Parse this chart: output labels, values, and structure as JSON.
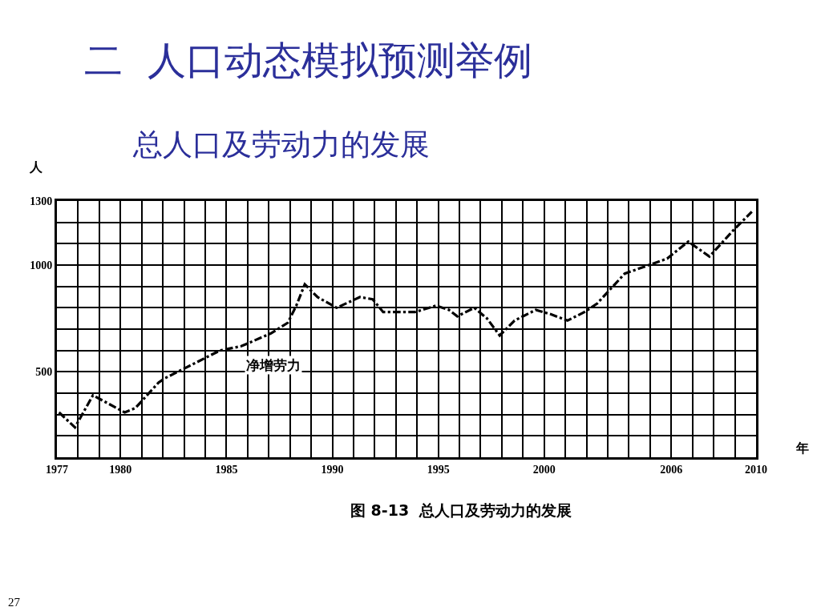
{
  "chart_data": {
    "type": "line",
    "title": "二  人口动态模拟预测举例",
    "subtitle": "总人口及劳动力的发展",
    "xlabel": "年",
    "ylabel": "人",
    "annotations": [
      "图 8-13  总人口及劳动力的发展",
      "27"
    ],
    "series": [
      {
        "name": "净增劳力",
        "color": "#000000",
        "x": [
          1977.1,
          1977.85,
          1978.7,
          1980.2,
          1980.7,
          1981.8,
          1982.1,
          1983.5,
          1984.7,
          1985.7,
          1987.1,
          1987.9,
          1988.3,
          1988.7,
          1989.3,
          1990.2,
          1991.3,
          1991.9,
          1992.4,
          1993.5,
          1993.9,
          1994.9,
          1995.5,
          1995.9,
          1996.7,
          1997.3,
          1997.9,
          1998.6,
          1999.6,
          2000.3,
          2001.1,
          2001.9,
          2002.5,
          2003.8,
          2005.8,
          2006.8,
          2007.8,
          2008.9,
          2009.8
        ],
        "values": [
          310,
          240,
          390,
          310,
          330,
          450,
          470,
          540,
          600,
          620,
          680,
          730,
          810,
          910,
          850,
          800,
          850,
          840,
          780,
          780,
          780,
          810,
          790,
          760,
          800,
          750,
          670,
          740,
          790,
          770,
          740,
          780,
          820,
          960,
          1030,
          1110,
          1040,
          1160,
          1250
        ]
      }
    ],
    "xlim": [
      1977,
      2010
    ],
    "xticks": [
      1977,
      {
        "value": 1978,
        "label": null
      },
      {
        "value": 1979,
        "label": null
      },
      1980,
      {
        "value": 1981,
        "label": null
      },
      {
        "value": 1982,
        "label": null
      },
      {
        "value": 1983,
        "label": null
      },
      {
        "value": 1984,
        "label": null
      },
      1985,
      {
        "value": 1986,
        "label": null
      },
      {
        "value": 1987,
        "label": null
      },
      {
        "value": 1988,
        "label": null
      },
      {
        "value": 1989,
        "label": null
      },
      1990,
      {
        "value": 1991,
        "label": null
      },
      {
        "value": 1992,
        "label": null
      },
      {
        "value": 1993,
        "label": null
      },
      {
        "value": 1994,
        "label": null
      },
      1995,
      {
        "value": 1996,
        "label": null
      },
      {
        "value": 1997,
        "label": null
      },
      {
        "value": 1998,
        "label": null
      },
      {
        "value": 1999,
        "label": null
      },
      2000,
      {
        "value": 2001,
        "label": null
      },
      {
        "value": 2002,
        "label": null
      },
      {
        "value": 2003,
        "label": null
      },
      {
        "value": 2004,
        "label": null
      },
      {
        "value": 2005,
        "label": null
      },
      2006,
      {
        "value": 2007,
        "label": null
      },
      {
        "value": 2008,
        "label": null
      },
      {
        "value": 2009,
        "label": null
      },
      2010
    ],
    "ylim": [
      100,
      1300
    ],
    "yticks": [
      {
        "value": 100,
        "label": null
      },
      {
        "value": 200,
        "label": null
      },
      {
        "value": 300,
        "label": null
      },
      {
        "value": 400,
        "label": null
      },
      500,
      {
        "value": 600,
        "label": null
      },
      {
        "value": 700,
        "label": null
      },
      {
        "value": 800,
        "label": null
      },
      {
        "value": 900,
        "label": null
      },
      1000,
      {
        "value": 1100,
        "label": null
      },
      {
        "value": 1200,
        "label": null
      },
      1300
    ],
    "grid": true,
    "legend": false,
    "line_style": "dashed"
  }
}
